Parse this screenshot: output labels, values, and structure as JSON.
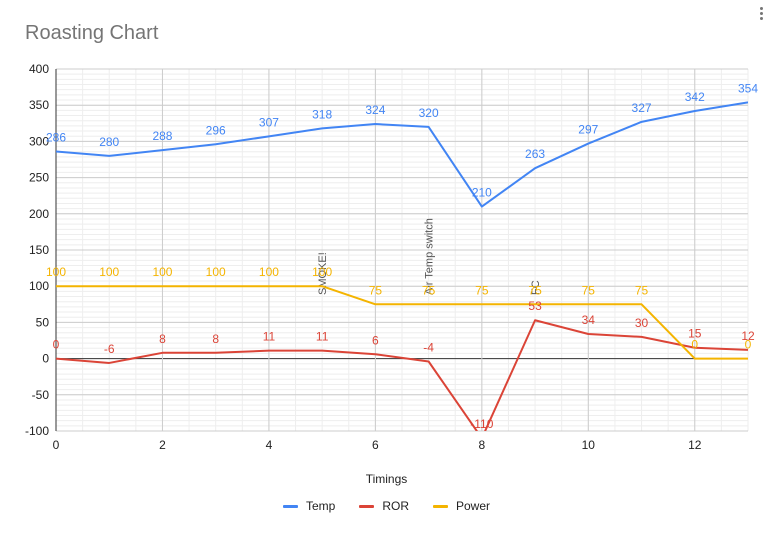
{
  "title": "Roasting Chart",
  "chart_data": {
    "type": "line",
    "title": "Roasting Chart",
    "xlabel": "Timings",
    "ylabel": "",
    "xlim": [
      0,
      13
    ],
    "ylim": [
      -100,
      400
    ],
    "x_ticks": [
      0,
      2,
      4,
      6,
      8,
      10,
      12
    ],
    "y_ticks": [
      -100,
      -50,
      0,
      50,
      100,
      150,
      200,
      250,
      300,
      350,
      400
    ],
    "grid": true,
    "legend_position": "bottom",
    "x": [
      0,
      1,
      2,
      3,
      4,
      5,
      6,
      7,
      8,
      9,
      10,
      11,
      12,
      13
    ],
    "series": [
      {
        "name": "Temp",
        "color": "#4285f4",
        "values": [
          286,
          280,
          288,
          296,
          307,
          318,
          324,
          320,
          210,
          263,
          297,
          327,
          342,
          354
        ]
      },
      {
        "name": "ROR",
        "color": "#db4437",
        "values": [
          0,
          -6,
          8,
          8,
          11,
          11,
          6,
          -4,
          -110,
          53,
          34,
          30,
          15,
          12
        ]
      },
      {
        "name": "Power",
        "color": "#f4b400",
        "values": [
          100,
          100,
          100,
          100,
          100,
          100,
          75,
          75,
          75,
          75,
          75,
          75,
          0,
          0
        ]
      }
    ],
    "annotations": [
      {
        "x": 5,
        "text": "SMOKE!"
      },
      {
        "x": 7,
        "text": "Air Temp switch"
      },
      {
        "x": 9,
        "text": "FC"
      }
    ]
  }
}
